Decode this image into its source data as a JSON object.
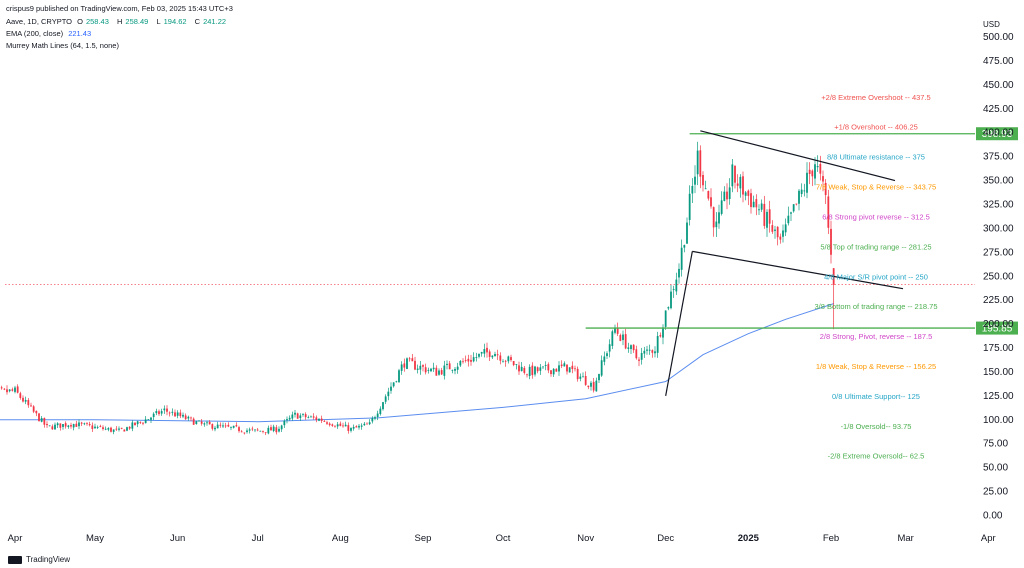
{
  "header": {
    "published": "crispus9 published on TradingView.com, Feb 03, 2025 15:43 UTC+3",
    "symbol": "Aave, 1D, CRYPTO",
    "ohlc": [
      {
        "k": "O",
        "v": "258.43"
      },
      {
        "k": "H",
        "v": "258.49"
      },
      {
        "k": "L",
        "v": "194.62"
      },
      {
        "k": "C",
        "v": "241.22"
      }
    ],
    "ema_label": "EMA (200, close)",
    "ema_value": "221.43",
    "murrey_label": "Murrey Math Lines (64, 1.5, none)"
  },
  "brand": "TradingView",
  "colors": {
    "up": "#089981",
    "down": "#f23645",
    "ema": "#5b8def",
    "level_line": "#4caf50",
    "price_line": "#f23645",
    "trend": "#131722"
  },
  "chart_data": {
    "type": "candlestick",
    "currency": "USD",
    "ylim": [
      0,
      500
    ],
    "y_ticks": [
      "0.00",
      "25.00",
      "50.00",
      "75.00",
      "100.00",
      "125.00",
      "150.00",
      "175.00",
      "200.00",
      "225.00",
      "250.00",
      "275.00",
      "300.00",
      "325.00",
      "350.00",
      "375.00",
      "400.00",
      "425.00",
      "450.00",
      "475.00",
      "500.00"
    ],
    "x_ticks": [
      {
        "label": "Apr",
        "date": "2024-04-01"
      },
      {
        "label": "May",
        "date": "2024-05-01"
      },
      {
        "label": "Jun",
        "date": "2024-06-01"
      },
      {
        "label": "Jul",
        "date": "2024-07-01"
      },
      {
        "label": "Aug",
        "date": "2024-08-01"
      },
      {
        "label": "Sep",
        "date": "2024-09-01"
      },
      {
        "label": "Oct",
        "date": "2024-10-01"
      },
      {
        "label": "Nov",
        "date": "2024-11-01"
      },
      {
        "label": "Dec",
        "date": "2024-12-01"
      },
      {
        "label": "2025",
        "date": "2025-01-01",
        "bold": true
      },
      {
        "label": "Feb",
        "date": "2025-02-01"
      },
      {
        "label": "Mar",
        "date": "2025-03-01"
      },
      {
        "label": "Apr",
        "date": "2025-04-01"
      }
    ],
    "price_anchors": [
      [
        "2024-03-20",
        128
      ],
      [
        "2024-04-01",
        130
      ],
      [
        "2024-04-13",
        92
      ],
      [
        "2024-04-22",
        96
      ],
      [
        "2024-05-10",
        88
      ],
      [
        "2024-05-20",
        100
      ],
      [
        "2024-05-27",
        110
      ],
      [
        "2024-06-10",
        95
      ],
      [
        "2024-06-30",
        88
      ],
      [
        "2024-07-08",
        90
      ],
      [
        "2024-07-15",
        105
      ],
      [
        "2024-07-25",
        100
      ],
      [
        "2024-08-05",
        90
      ],
      [
        "2024-08-12",
        95
      ],
      [
        "2024-08-25",
        160
      ],
      [
        "2024-09-06",
        150
      ],
      [
        "2024-09-27",
        172
      ],
      [
        "2024-10-10",
        150
      ],
      [
        "2024-10-25",
        155
      ],
      [
        "2024-11-04",
        135
      ],
      [
        "2024-11-12",
        195
      ],
      [
        "2024-11-20",
        165
      ],
      [
        "2024-11-27",
        175
      ],
      [
        "2024-12-06",
        260
      ],
      [
        "2024-12-13",
        375
      ],
      [
        "2024-12-20",
        300
      ],
      [
        "2024-12-26",
        355
      ],
      [
        "2025-01-05",
        320
      ],
      [
        "2025-01-13",
        285
      ],
      [
        "2025-01-26",
        370
      ],
      [
        "2025-01-30",
        330
      ],
      [
        "2025-02-02",
        241
      ]
    ],
    "ema": {
      "name": "EMA (200, close)",
      "points": [
        [
          "2024-03-20",
          100
        ],
        [
          "2024-05-01",
          100
        ],
        [
          "2024-07-01",
          98
        ],
        [
          "2024-08-15",
          102
        ],
        [
          "2024-10-01",
          113
        ],
        [
          "2024-11-01",
          122
        ],
        [
          "2024-12-01",
          140
        ],
        [
          "2024-12-15",
          168
        ],
        [
          "2025-01-01",
          190
        ],
        [
          "2025-01-15",
          205
        ],
        [
          "2025-02-02",
          221.43
        ]
      ]
    },
    "horizontal_levels": [
      {
        "value": 398.93,
        "label": "398.93",
        "start": "2024-12-10"
      },
      {
        "value": 195.85,
        "label": "195.85",
        "start": "2024-11-01"
      }
    ],
    "last_price": 241.22,
    "trendlines": [
      {
        "from": [
          "2024-12-14",
          402
        ],
        "to": [
          "2025-02-25",
          350
        ]
      },
      {
        "from": [
          "2024-12-11",
          276
        ],
        "to": [
          "2025-02-28",
          237
        ]
      },
      {
        "from": [
          "2024-12-01",
          125
        ],
        "to": [
          "2024-12-11",
          276
        ]
      }
    ],
    "murrey_levels": [
      {
        "label": "+2/8 Extreme Overshoot --  437.5",
        "value": 437.5,
        "color": "#ef5350"
      },
      {
        "label": "+1/8 Overshoot --  406.25",
        "value": 406.25,
        "color": "#ef5350"
      },
      {
        "label": "8/8 Ultimate resistance --  375",
        "value": 375,
        "color": "#26a6c7"
      },
      {
        "label": "7/8 Weak, Stop & Reverse --  343.75",
        "value": 343.75,
        "color": "#ff9800"
      },
      {
        "label": "6/8 Strong pivot reverse --  312.5",
        "value": 312.5,
        "color": "#d046c8"
      },
      {
        "label": "5/8 Top of trading range --  281.25",
        "value": 281.25,
        "color": "#4caf50"
      },
      {
        "label": "4/8 Major S/R pivot point --  250",
        "value": 250,
        "color": "#26a6c7"
      },
      {
        "label": "3/8 Bottom of trading range --  218.75",
        "value": 218.75,
        "color": "#4caf50"
      },
      {
        "label": "2/8 Strong, Pivot, reverse --  187.5",
        "value": 187.5,
        "color": "#d046c8"
      },
      {
        "label": "1/8 Weak, Stop & Reverse --  156.25",
        "value": 156.25,
        "color": "#ff9800"
      },
      {
        "label": "0/8 Ultimate Support--  125",
        "value": 125,
        "color": "#26a6c7"
      },
      {
        "label": "-1/8 Oversold--  93.75",
        "value": 93.75,
        "color": "#4caf50"
      },
      {
        "label": "-2/8 Extreme Oversold--  62.5",
        "value": 62.5,
        "color": "#4caf50"
      }
    ]
  }
}
